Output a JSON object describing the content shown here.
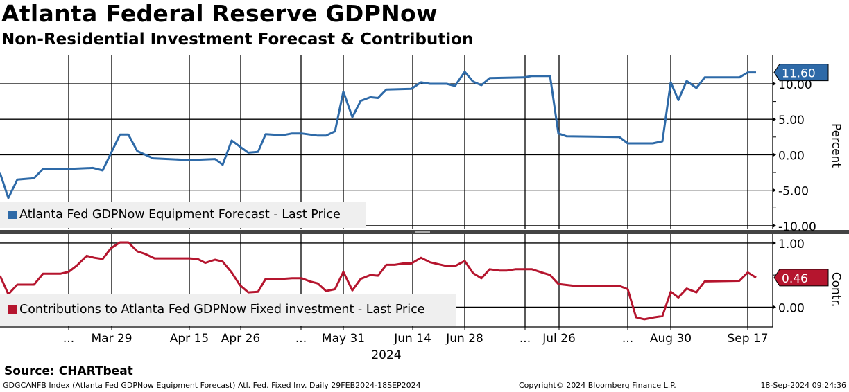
{
  "header": {
    "title": "Atlanta Federal Reserve GDPNow",
    "subtitle": "Non-Residential Investment Forecast & Contribution"
  },
  "chart_data": [
    {
      "type": "line",
      "panel": "top",
      "ylabel": "Percent",
      "ylim": [
        -10.5,
        14
      ],
      "yticks": [
        10,
        5,
        0,
        -5,
        -10
      ],
      "ytick_labels": [
        "10.00",
        "5.00",
        "0.00",
        "-5.00",
        "-10.00"
      ],
      "grid": true,
      "legend": "bottom-left",
      "series": [
        {
          "name": "Atlanta Fed GDPNow Equipment Forecast - Last Price",
          "color": "#2e6aa8",
          "last_value_label": "11.60",
          "last_value": 11.6,
          "points": [
            [
              0,
              -2.55
            ],
            [
              1.2,
              -6.1
            ],
            [
              2.5,
              -3.5
            ],
            [
              4.9,
              -3.3
            ],
            [
              6.2,
              -2.0
            ],
            [
              9.9,
              -2.0
            ],
            [
              13.4,
              -1.85
            ],
            [
              14.8,
              -2.2
            ],
            [
              17.3,
              2.85
            ],
            [
              18.5,
              2.85
            ],
            [
              19.8,
              0.5
            ],
            [
              22.1,
              -0.5
            ],
            [
              27.3,
              -0.75
            ],
            [
              31.0,
              -0.6
            ],
            [
              32.1,
              -1.4
            ],
            [
              33.4,
              2.0
            ],
            [
              35.8,
              0.3
            ],
            [
              37.2,
              0.4
            ],
            [
              38.3,
              2.9
            ],
            [
              40.7,
              2.75
            ],
            [
              42.1,
              3.0
            ],
            [
              43.5,
              3.0
            ],
            [
              45.8,
              2.7
            ],
            [
              47.0,
              2.7
            ],
            [
              48.3,
              3.3
            ],
            [
              49.5,
              8.9
            ],
            [
              50.8,
              5.3
            ],
            [
              52.0,
              7.6
            ],
            [
              53.4,
              8.1
            ],
            [
              54.5,
              8.0
            ],
            [
              55.7,
              9.2
            ],
            [
              59.3,
              9.3
            ],
            [
              60.7,
              10.2
            ],
            [
              62.0,
              10.0
            ],
            [
              64.4,
              10.0
            ],
            [
              65.6,
              9.7
            ],
            [
              67.0,
              11.7
            ],
            [
              68.2,
              10.3
            ],
            [
              69.4,
              9.8
            ],
            [
              70.6,
              10.8
            ],
            [
              75.5,
              10.9
            ],
            [
              76.7,
              11.1
            ],
            [
              79.3,
              11.1
            ],
            [
              80.5,
              3.0
            ],
            [
              81.7,
              2.6
            ],
            [
              85.5,
              2.55
            ],
            [
              89.3,
              2.5
            ],
            [
              90.5,
              1.6
            ],
            [
              94.1,
              1.6
            ],
            [
              95.5,
              1.9
            ],
            [
              96.7,
              10.2
            ],
            [
              97.8,
              7.7
            ],
            [
              99.0,
              10.4
            ],
            [
              100.4,
              9.4
            ],
            [
              101.6,
              10.9
            ],
            [
              106.6,
              10.9
            ],
            [
              107.8,
              11.6
            ],
            [
              109.0,
              11.6
            ]
          ]
        }
      ]
    },
    {
      "type": "line",
      "panel": "bottom",
      "ylabel": "Contr.",
      "ylim": [
        -0.31,
        1.14
      ],
      "yticks": [
        1,
        0
      ],
      "ytick_labels": [
        "1.00",
        "0.00"
      ],
      "grid": true,
      "legend": "bottom-left",
      "series": [
        {
          "name": "Contributions to Atlanta Fed GDPNow Fixed investment - Last Price",
          "color": "#b5152e",
          "last_value_label": "0.46",
          "last_value": 0.46,
          "points": [
            [
              0,
              0.49
            ],
            [
              1.2,
              0.2
            ],
            [
              2.5,
              0.35
            ],
            [
              4.9,
              0.35
            ],
            [
              6.2,
              0.52
            ],
            [
              8.7,
              0.52
            ],
            [
              9.9,
              0.55
            ],
            [
              11.1,
              0.65
            ],
            [
              12.5,
              0.8
            ],
            [
              13.6,
              0.77
            ],
            [
              14.8,
              0.75
            ],
            [
              16.0,
              0.92
            ],
            [
              17.3,
              1.01
            ],
            [
              18.5,
              1.01
            ],
            [
              19.8,
              0.87
            ],
            [
              20.9,
              0.83
            ],
            [
              22.3,
              0.76
            ],
            [
              27.3,
              0.76
            ],
            [
              28.5,
              0.75
            ],
            [
              29.6,
              0.69
            ],
            [
              31.0,
              0.74
            ],
            [
              32.1,
              0.71
            ],
            [
              33.4,
              0.54
            ],
            [
              34.6,
              0.34
            ],
            [
              35.8,
              0.23
            ],
            [
              37.2,
              0.24
            ],
            [
              38.3,
              0.44
            ],
            [
              40.7,
              0.44
            ],
            [
              42.1,
              0.45
            ],
            [
              43.5,
              0.45
            ],
            [
              44.7,
              0.4
            ],
            [
              45.8,
              0.37
            ],
            [
              47.0,
              0.25
            ],
            [
              48.3,
              0.28
            ],
            [
              49.5,
              0.55
            ],
            [
              50.8,
              0.26
            ],
            [
              52.0,
              0.44
            ],
            [
              53.4,
              0.5
            ],
            [
              54.5,
              0.49
            ],
            [
              55.7,
              0.66
            ],
            [
              56.9,
              0.66
            ],
            [
              58.1,
              0.68
            ],
            [
              59.3,
              0.68
            ],
            [
              60.7,
              0.77
            ],
            [
              62.0,
              0.7
            ],
            [
              64.4,
              0.64
            ],
            [
              65.6,
              0.64
            ],
            [
              67.0,
              0.72
            ],
            [
              68.2,
              0.53
            ],
            [
              69.4,
              0.45
            ],
            [
              70.6,
              0.59
            ],
            [
              72.0,
              0.57
            ],
            [
              73.1,
              0.57
            ],
            [
              74.3,
              0.59
            ],
            [
              76.7,
              0.59
            ],
            [
              78.1,
              0.54
            ],
            [
              79.3,
              0.5
            ],
            [
              80.5,
              0.36
            ],
            [
              82.9,
              0.33
            ],
            [
              89.3,
              0.33
            ],
            [
              90.5,
              0.28
            ],
            [
              91.7,
              -0.16
            ],
            [
              92.9,
              -0.19
            ],
            [
              94.3,
              -0.16
            ],
            [
              95.5,
              -0.14
            ],
            [
              96.7,
              0.24
            ],
            [
              97.8,
              0.15
            ],
            [
              99.0,
              0.29
            ],
            [
              100.4,
              0.23
            ],
            [
              101.6,
              0.4
            ],
            [
              106.6,
              0.41
            ],
            [
              107.8,
              0.54
            ],
            [
              109.0,
              0.46
            ]
          ]
        }
      ]
    }
  ],
  "x_axis": {
    "ticks": [
      {
        "x": 9.9,
        "label": "..."
      },
      {
        "x": 16.1,
        "label": "Mar 29"
      },
      {
        "x": 27.3,
        "label": "Apr 15"
      },
      {
        "x": 34.7,
        "label": "Apr 26"
      },
      {
        "x": 43.4,
        "label": "..."
      },
      {
        "x": 49.5,
        "label": "May 31"
      },
      {
        "x": 59.5,
        "label": "Jun 14"
      },
      {
        "x": 67.0,
        "label": "Jun 28"
      },
      {
        "x": 75.7,
        "label": "..."
      },
      {
        "x": 80.6,
        "label": "Jul 26"
      },
      {
        "x": 90.5,
        "label": "..."
      },
      {
        "x": 96.7,
        "label": "Aug 30"
      },
      {
        "x": 107.8,
        "label": "Sep 17"
      }
    ],
    "year_label": "2024",
    "xlim": [
      0,
      111.2
    ]
  },
  "footer": {
    "source": "Source: CHARTbeat",
    "description": "GDGCANFB Index (Atlanta Fed GDPNow Equipment Forecast) Atl. Fed. Fixed Inv.  Daily 29FEB2024-18SEP2024",
    "copyright": "Copyright© 2024 Bloomberg Finance L.P.",
    "timestamp": "18-Sep-2024 09:24:36"
  }
}
